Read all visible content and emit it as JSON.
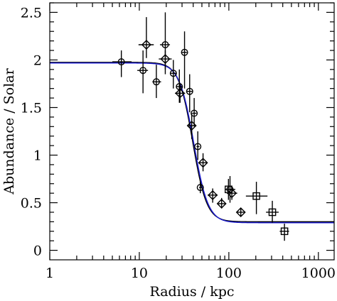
{
  "chart_data": {
    "type": "scatter",
    "xlabel": "Radius / kpc",
    "ylabel": "Abundance / Solar",
    "xscale": "log",
    "xlim": [
      1,
      1500
    ],
    "ylim": [
      -0.1,
      2.6
    ],
    "x_ticks": [
      1,
      10,
      100,
      1000
    ],
    "x_tick_labels": [
      "1",
      "10",
      "100",
      "1000"
    ],
    "y_ticks": [
      0,
      0.5,
      1,
      1.5,
      2,
      2.5
    ],
    "y_tick_labels": [
      "0",
      "0.5",
      "1",
      "1.5",
      "2",
      "2.5"
    ],
    "grid": false,
    "legend": "none",
    "series": [
      {
        "marker": "circle",
        "points": [
          {
            "x": 6.3,
            "y": 1.98,
            "xerr": [
              5.0,
              8.2
            ],
            "yerr": [
              1.82,
              2.1
            ]
          },
          {
            "x": 11,
            "y": 1.89,
            "xerr": [
              9.5,
              12.5
            ],
            "yerr": [
              1.65,
              2.1
            ]
          },
          {
            "x": 15.5,
            "y": 1.77,
            "xerr": [
              14,
              17.5
            ],
            "yerr": [
              1.6,
              1.95
            ]
          },
          {
            "x": 19.5,
            "y": 2.16,
            "xerr": [
              17,
              22
            ],
            "yerr": [
              1.85,
              2.5
            ]
          },
          {
            "x": 24,
            "y": 1.86,
            "xerr": [
              22,
              26
            ],
            "yerr": [
              1.7,
              2.0
            ]
          },
          {
            "x": 28,
            "y": 1.72,
            "xerr": [
              26,
              30
            ],
            "yerr": [
              1.55,
              1.9
            ]
          },
          {
            "x": 32,
            "y": 2.08,
            "xerr": [
              30,
              34
            ],
            "yerr": [
              1.7,
              2.3
            ]
          },
          {
            "x": 36.5,
            "y": 1.67,
            "xerr": [
              34,
              39
            ],
            "yerr": [
              1.45,
              1.85
            ]
          },
          {
            "x": 41,
            "y": 1.44,
            "xerr": [
              39,
              43.5
            ],
            "yerr": [
              1.3,
              1.6
            ]
          },
          {
            "x": 45,
            "y": 1.09,
            "xerr": [
              43.5,
              47
            ],
            "yerr": [
              0.95,
              1.25
            ]
          },
          {
            "x": 48,
            "y": 0.66,
            "xerr": [
              46.5,
              50
            ],
            "yerr": [
              0.6,
              0.72
            ]
          },
          {
            "x": 103,
            "y": 0.64,
            "xerr": [
              90,
              118
            ],
            "yerr": [
              0.5,
              0.78
            ]
          }
        ]
      },
      {
        "marker": "diamond",
        "points": [
          {
            "x": 12,
            "y": 2.16,
            "xerr": [
              9.8,
              14.5
            ],
            "yerr": [
              2.02,
              2.45
            ]
          },
          {
            "x": 19.5,
            "y": 2.01,
            "xerr": [
              16.5,
              23
            ],
            "yerr": [
              1.9,
              2.1
            ]
          },
          {
            "x": 28.5,
            "y": 1.65,
            "xerr": [
              25,
              32.5
            ],
            "yerr": [
              1.55,
              1.75
            ]
          },
          {
            "x": 38.5,
            "y": 1.31,
            "xerr": [
              34.5,
              43
            ],
            "yerr": [
              1.17,
              1.44
            ]
          },
          {
            "x": 51.5,
            "y": 0.92,
            "xerr": [
              46,
              57
            ],
            "yerr": [
              0.83,
              1.02
            ]
          },
          {
            "x": 66,
            "y": 0.58,
            "xerr": [
              58,
              75
            ],
            "yerr": [
              0.5,
              0.65
            ]
          },
          {
            "x": 83,
            "y": 0.49,
            "xerr": [
              74,
              93
            ],
            "yerr": [
              0.44,
              0.55
            ]
          },
          {
            "x": 108,
            "y": 0.6,
            "xerr": [
              95,
              124
            ],
            "yerr": [
              0.53,
              0.68
            ]
          },
          {
            "x": 136,
            "y": 0.4,
            "xerr": [
              122,
              152
            ],
            "yerr": [
              0.36,
              0.44
            ]
          }
        ]
      },
      {
        "marker": "square",
        "points": [
          {
            "x": 99,
            "y": 0.64,
            "xerr": [
              90,
              110
            ],
            "yerr": [
              0.53,
              0.75
            ]
          },
          {
            "x": 203,
            "y": 0.57,
            "xerr": [
              155,
              270
            ],
            "yerr": [
              0.38,
              0.72
            ]
          },
          {
            "x": 306,
            "y": 0.4,
            "xerr": [
              260,
              360
            ],
            "yerr": [
              0.29,
              0.52
            ]
          },
          {
            "x": 418,
            "y": 0.2,
            "xerr": [
              370,
              470
            ],
            "yerr": [
              0.1,
              0.28
            ]
          }
        ]
      }
    ],
    "models": [
      {
        "color": "#000000",
        "r_c": 39.5,
        "high": 1.975,
        "low": 0.3,
        "width": 0.078
      },
      {
        "color": "#1c1ccc",
        "r_c": 40.5,
        "high": 1.968,
        "low": 0.29,
        "width": 0.08
      }
    ]
  }
}
